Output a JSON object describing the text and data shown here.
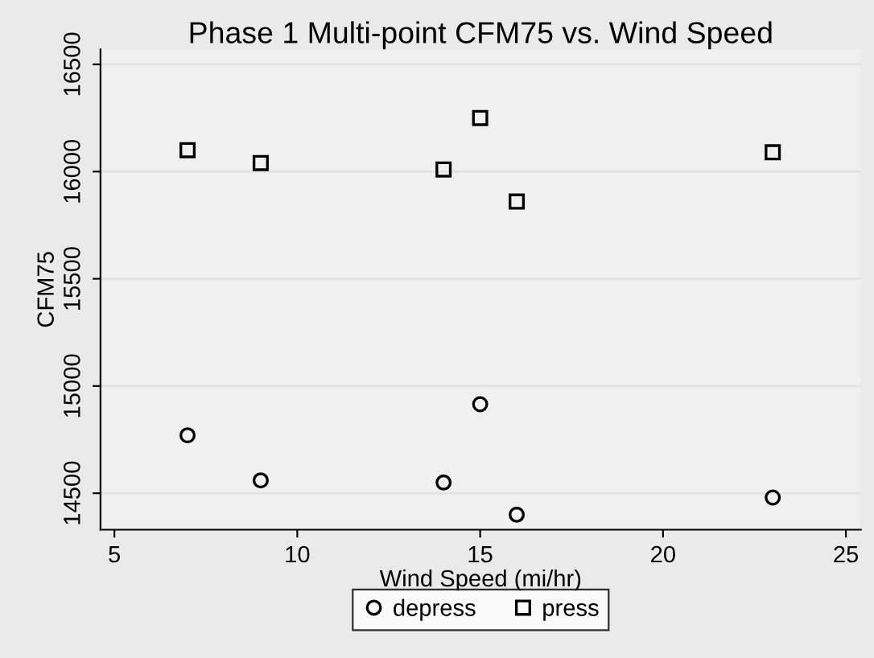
{
  "chart_data": {
    "type": "scatter",
    "title": "Phase 1 Multi-point CFM75 vs. Wind Speed",
    "xlabel": "Wind Speed (mi/hr)",
    "ylabel": "CFM75",
    "x": [
      7,
      9,
      14,
      15,
      16,
      23
    ],
    "series": [
      {
        "name": "depress",
        "color": "#000000",
        "marker": "circle",
        "values": [
          14770,
          14560,
          14550,
          14915,
          14400,
          14480
        ]
      },
      {
        "name": "press",
        "color": "#000000",
        "marker": "square",
        "values": [
          16100,
          16040,
          16010,
          16250,
          15860,
          16090
        ]
      }
    ],
    "xlim": [
      4.62,
      25.41
    ],
    "ylim": [
      14330,
      16570
    ],
    "xticks": [
      5,
      10,
      15,
      20,
      25
    ],
    "yticks": [
      14500,
      15000,
      15500,
      16000,
      16500
    ],
    "grid": "y",
    "legend": "bottom"
  }
}
